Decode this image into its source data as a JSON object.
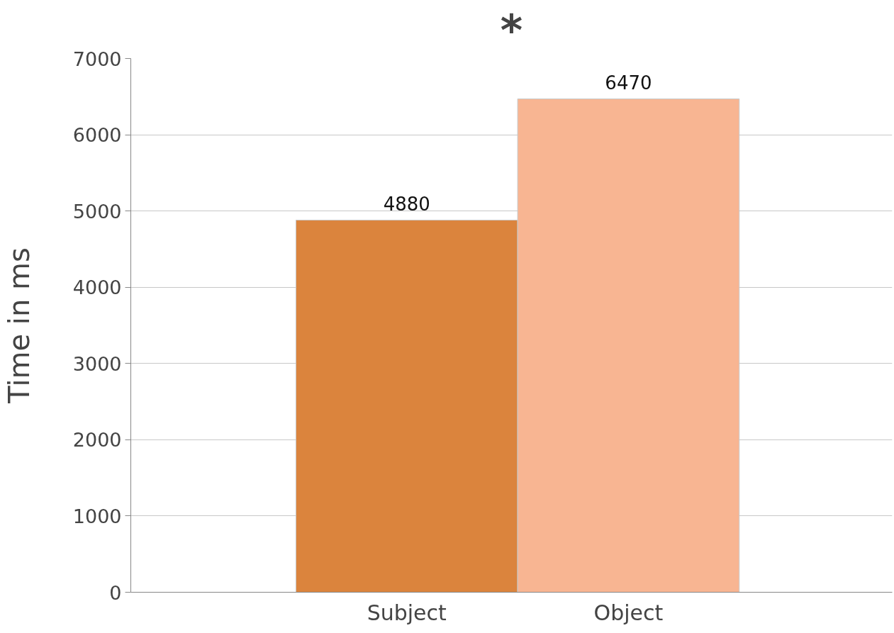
{
  "chart_data": {
    "type": "bar",
    "ylabel": "Time in ms",
    "categories": [
      "Subject",
      "Object"
    ],
    "values": [
      4880,
      6470
    ],
    "colors": [
      "#db843d",
      "#f8b592"
    ],
    "ylim": [
      0,
      7000
    ],
    "yticks": [
      0,
      1000,
      2000,
      3000,
      4000,
      5000,
      6000,
      7000
    ],
    "grid": "y",
    "data_labels": true,
    "annotations": [
      "*"
    ]
  }
}
